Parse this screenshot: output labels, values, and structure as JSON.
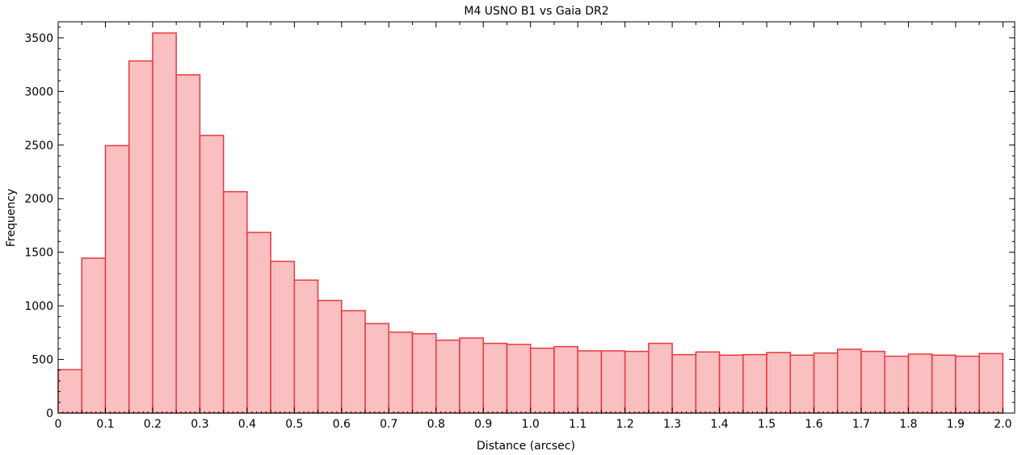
{
  "chart_data": {
    "type": "bar",
    "title": "M4 USNO B1 vs Gaia DR2",
    "xlabel": "Distance (arcsec)",
    "ylabel": "Frequency",
    "xlim": [
      0,
      2.025
    ],
    "ylim": [
      0,
      3650
    ],
    "bin_width": 0.05,
    "bin_starts": [
      0,
      0.05,
      0.1,
      0.15,
      0.2,
      0.25,
      0.3,
      0.35,
      0.4,
      0.45,
      0.5,
      0.55,
      0.6,
      0.65,
      0.7,
      0.75,
      0.8,
      0.85,
      0.9,
      0.95,
      1.0,
      1.05,
      1.1,
      1.15,
      1.2,
      1.25,
      1.3,
      1.35,
      1.4,
      1.45,
      1.5,
      1.55,
      1.6,
      1.65,
      1.7,
      1.75,
      1.8,
      1.85,
      1.9,
      1.95
    ],
    "values": [
      405,
      1445,
      2495,
      3285,
      3545,
      3155,
      2590,
      2065,
      1685,
      1415,
      1240,
      1050,
      955,
      835,
      755,
      740,
      680,
      700,
      650,
      640,
      605,
      620,
      580,
      580,
      575,
      650,
      545,
      570,
      540,
      545,
      565,
      540,
      560,
      595,
      575,
      530,
      550,
      540,
      530,
      555
    ],
    "xticks": [
      "0",
      "0.1",
      "0.2",
      "0.3",
      "0.4",
      "0.5",
      "0.6",
      "0.7",
      "0.8",
      "0.9",
      "1.0",
      "1.1",
      "1.2",
      "1.3",
      "1.4",
      "1.5",
      "1.6",
      "1.7",
      "1.8",
      "1.9",
      "2.0"
    ],
    "yticks": [
      "0",
      "500",
      "1000",
      "1500",
      "2000",
      "2500",
      "3000",
      "3500"
    ],
    "grid": false,
    "colors": {
      "bar_fill": "#f9bfc1",
      "bar_stroke": "#e8393f"
    }
  }
}
